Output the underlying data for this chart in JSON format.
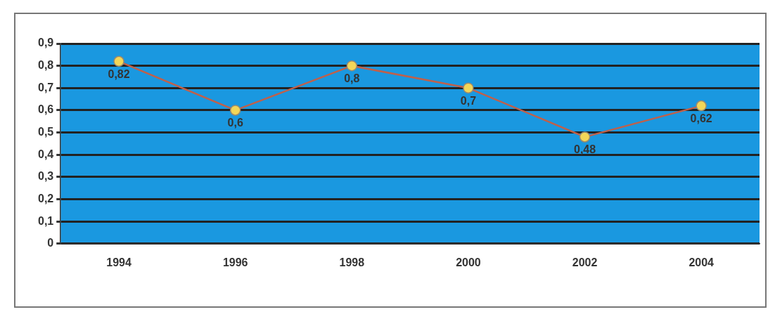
{
  "chart_data": {
    "type": "line",
    "categories": [
      "1994",
      "1996",
      "1998",
      "2000",
      "2002",
      "2004"
    ],
    "series": [
      {
        "color": "#c0604a",
        "values": [
          0.82,
          0.6,
          0.8,
          0.7,
          0.48,
          0.62
        ],
        "value_labels": [
          "0,82",
          "0,6",
          "0,8",
          "0,7",
          "0,48",
          "0,62"
        ]
      }
    ],
    "ylim": [
      0,
      0.9
    ],
    "yticks": [
      {
        "value": 0,
        "label": "0"
      },
      {
        "value": 0.1,
        "label": "0,1"
      },
      {
        "value": 0.2,
        "label": "0,2"
      },
      {
        "value": 0.3,
        "label": "0,3"
      },
      {
        "value": 0.4,
        "label": "0,4"
      },
      {
        "value": 0.5,
        "label": "0,5"
      },
      {
        "value": 0.6,
        "label": "0,6"
      },
      {
        "value": 0.7,
        "label": "0,7"
      },
      {
        "value": 0.8,
        "label": "0,8"
      },
      {
        "value": 0.9,
        "label": "0,9"
      }
    ],
    "grid": "y",
    "legend": false,
    "marker": "circle",
    "line_style": "solid"
  }
}
